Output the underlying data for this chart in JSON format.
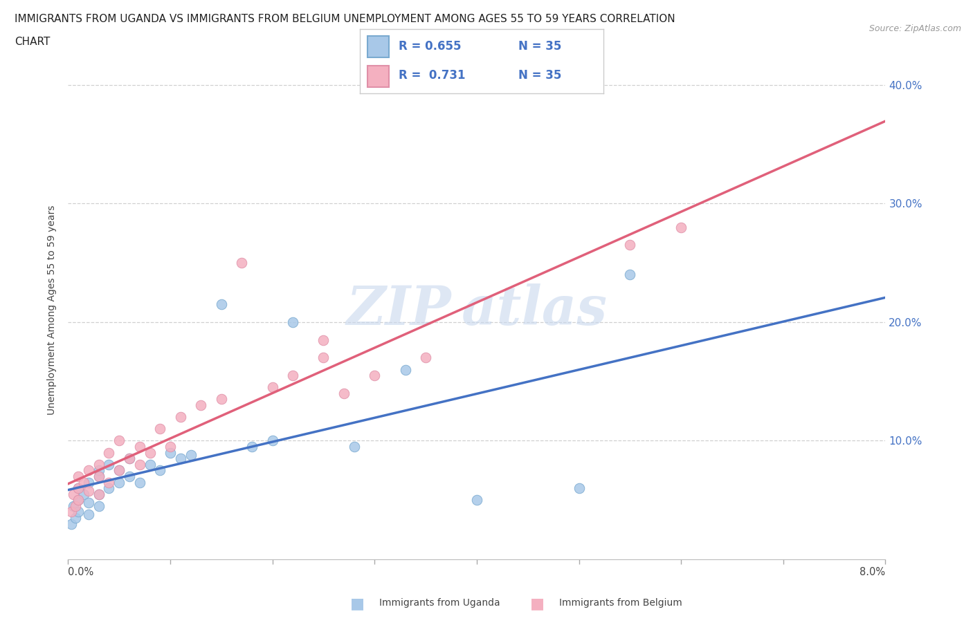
{
  "title_line1": "IMMIGRANTS FROM UGANDA VS IMMIGRANTS FROM BELGIUM UNEMPLOYMENT AMONG AGES 55 TO 59 YEARS CORRELATION",
  "title_line2": "CHART",
  "source": "Source: ZipAtlas.com",
  "ylabel": "Unemployment Among Ages 55 to 59 years",
  "legend_label1": "Immigrants from Uganda",
  "legend_label2": "Immigrants from Belgium",
  "R1": 0.655,
  "N1": 35,
  "R2": 0.731,
  "N2": 35,
  "color_uganda": "#a8c8e8",
  "color_belgium": "#f4b0c0",
  "color_uganda_line": "#4472c4",
  "color_belgium_line": "#e0607a",
  "uganda_x": [
    0.0003,
    0.0005,
    0.0007,
    0.001,
    0.001,
    0.001,
    0.0015,
    0.002,
    0.002,
    0.002,
    0.003,
    0.003,
    0.003,
    0.003,
    0.004,
    0.004,
    0.005,
    0.005,
    0.006,
    0.006,
    0.007,
    0.008,
    0.009,
    0.01,
    0.011,
    0.012,
    0.015,
    0.018,
    0.02,
    0.022,
    0.028,
    0.033,
    0.04,
    0.05,
    0.055
  ],
  "uganda_y": [
    0.03,
    0.045,
    0.035,
    0.05,
    0.04,
    0.06,
    0.055,
    0.048,
    0.065,
    0.038,
    0.055,
    0.07,
    0.045,
    0.075,
    0.06,
    0.08,
    0.065,
    0.075,
    0.085,
    0.07,
    0.065,
    0.08,
    0.075,
    0.09,
    0.085,
    0.088,
    0.215,
    0.095,
    0.1,
    0.2,
    0.095,
    0.16,
    0.05,
    0.06,
    0.24
  ],
  "belgium_x": [
    0.0003,
    0.0005,
    0.0007,
    0.001,
    0.001,
    0.001,
    0.0015,
    0.002,
    0.002,
    0.003,
    0.003,
    0.003,
    0.004,
    0.004,
    0.005,
    0.005,
    0.006,
    0.007,
    0.007,
    0.008,
    0.009,
    0.01,
    0.011,
    0.013,
    0.015,
    0.017,
    0.02,
    0.022,
    0.025,
    0.025,
    0.027,
    0.03,
    0.035,
    0.055,
    0.06
  ],
  "belgium_y": [
    0.04,
    0.055,
    0.045,
    0.06,
    0.07,
    0.05,
    0.065,
    0.075,
    0.058,
    0.07,
    0.08,
    0.055,
    0.065,
    0.09,
    0.075,
    0.1,
    0.085,
    0.08,
    0.095,
    0.09,
    0.11,
    0.095,
    0.12,
    0.13,
    0.135,
    0.25,
    0.145,
    0.155,
    0.17,
    0.185,
    0.14,
    0.155,
    0.17,
    0.265,
    0.28
  ],
  "xlim": [
    0.0,
    0.08
  ],
  "ylim": [
    0.0,
    0.42
  ],
  "yticks": [
    0.1,
    0.2,
    0.3,
    0.4
  ],
  "ytick_labels": [
    "10.0%",
    "20.0%",
    "30.0%",
    "40.0%"
  ],
  "xticks": [
    0.0,
    0.01,
    0.02,
    0.03,
    0.04,
    0.05,
    0.06,
    0.07,
    0.08
  ],
  "background_color": "#ffffff",
  "grid_color": "#d0d0d0"
}
